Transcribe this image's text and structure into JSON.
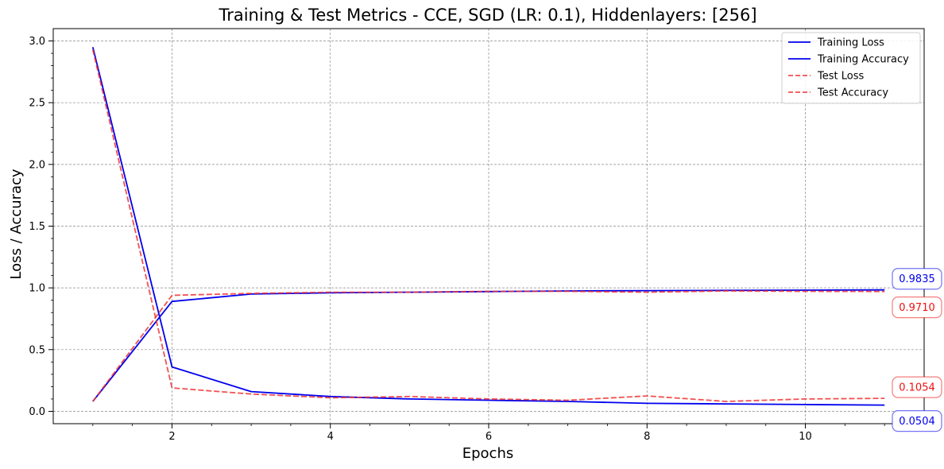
{
  "chart_data": {
    "type": "line",
    "title": "Training & Test Metrics - CCE, SGD (LR: 0.1), Hiddenlayers: [256]",
    "xlabel": "Epochs",
    "ylabel": "Loss / Accuracy",
    "xlim": [
      0.5,
      11.5
    ],
    "ylim": [
      -0.1,
      3.1
    ],
    "x_ticks": [
      2,
      4,
      6,
      8,
      10
    ],
    "y_ticks": [
      0.0,
      0.5,
      1.0,
      1.5,
      2.0,
      2.5,
      3.0
    ],
    "x_tick_labels": [
      "2",
      "4",
      "6",
      "8",
      "10"
    ],
    "y_tick_labels": [
      "0.0",
      "0.5",
      "1.0",
      "1.5",
      "2.0",
      "2.5",
      "3.0"
    ],
    "grid": true,
    "legend_position": "top-right",
    "x": [
      1,
      2,
      3,
      4,
      5,
      6,
      7,
      8,
      9,
      10,
      11
    ],
    "series": [
      {
        "name": "Training Loss",
        "color": "#0000ee",
        "dash": "solid",
        "values": [
          2.95,
          0.36,
          0.16,
          0.12,
          0.1,
          0.09,
          0.08,
          0.065,
          0.06,
          0.055,
          0.0504
        ]
      },
      {
        "name": "Training Accuracy",
        "color": "#0000ee",
        "dash": "solid",
        "values": [
          0.08,
          0.89,
          0.95,
          0.96,
          0.965,
          0.97,
          0.975,
          0.978,
          0.98,
          0.982,
          0.9835
        ]
      },
      {
        "name": "Test Loss",
        "color": "#ee3333",
        "dash": "dashed",
        "values": [
          2.93,
          0.19,
          0.14,
          0.11,
          0.12,
          0.1,
          0.09,
          0.125,
          0.08,
          0.1,
          0.1054
        ]
      },
      {
        "name": "Test Accuracy",
        "color": "#ee3333",
        "dash": "dashed",
        "values": [
          0.08,
          0.94,
          0.955,
          0.965,
          0.965,
          0.972,
          0.972,
          0.965,
          0.975,
          0.972,
          0.971
        ]
      }
    ],
    "end_labels": [
      {
        "text": "0.9835",
        "y": 0.9835,
        "color": "#0000ee",
        "offset": 0
      },
      {
        "text": "0.9710",
        "y": 0.971,
        "color": "#ee1111",
        "offset": 1
      },
      {
        "text": "0.1054",
        "y": 0.1054,
        "color": "#ee1111",
        "offset": 0
      },
      {
        "text": "0.0504",
        "y": 0.0504,
        "color": "#0000ee",
        "offset": 1
      }
    ]
  }
}
